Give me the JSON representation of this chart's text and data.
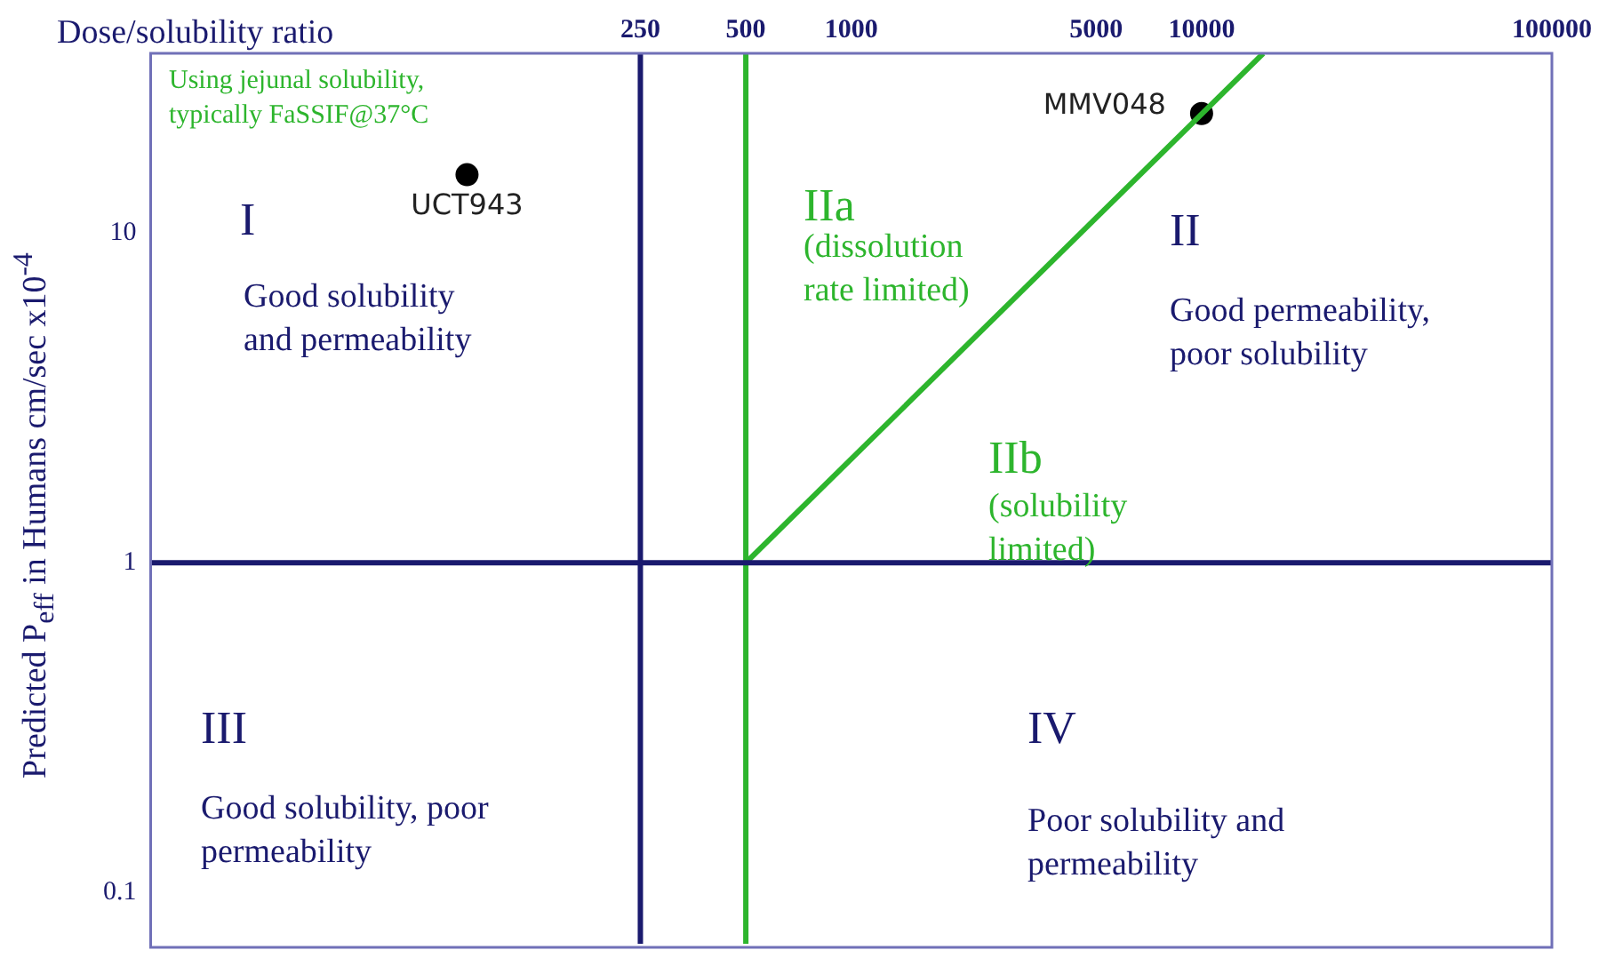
{
  "chart_data": {
    "type": "scatter",
    "xlabel": "Dose/solubility ratio",
    "ylabel": "Predicted P$_{eff}$ in Humans cm/sec x10$^{-4}$",
    "log": "xy",
    "xlim": [
      10,
      100000
    ],
    "xticks": [
      250,
      500,
      1000,
      5000,
      10000,
      100000
    ],
    "ylim": [
      0.07,
      35
    ],
    "yticks": [
      0.1,
      1,
      10
    ],
    "grid": false,
    "legend": false,
    "marker": "circle",
    "series": [
      {
        "type": "line",
        "color": "#2db52d",
        "x": [
          500,
          15000
        ],
        "values": [
          1,
          35
        ],
        "marker": "none"
      },
      {
        "name": "UCT943",
        "color": "#000000",
        "x": [
          80
        ],
        "values": [
          15
        ]
      },
      {
        "name": "MMV048",
        "color": "#000000",
        "x": [
          10000
        ],
        "values": [
          23
        ]
      }
    ],
    "ref_lines": [
      {
        "axis": "x",
        "value": 250,
        "color": "#1a1a6e"
      },
      {
        "axis": "x",
        "value": 500,
        "color": "#2db52d"
      },
      {
        "axis": "y",
        "value": 1,
        "color": "#1a1a6e"
      }
    ],
    "annotations": [
      "Using jejunal solubility,\ntypically FaSSIF@37°C",
      "I",
      "Good solubility\nand permeability",
      "IIa",
      "(dissolution\nrate limited)",
      "II",
      "Good permeability,\npoor solubility",
      "IIb",
      "(solubility\nlimited)",
      "III",
      "Good solubility, poor\npermeability",
      "IV",
      "Poor solubility and\npermeability"
    ]
  }
}
